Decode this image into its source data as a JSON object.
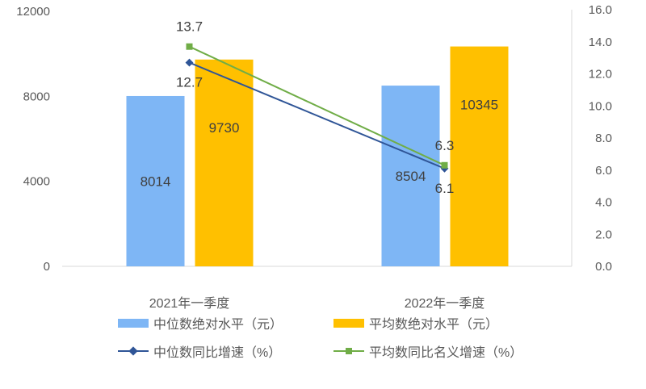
{
  "chart_data": {
    "type": "bar+line",
    "categories": [
      "2021年一季度",
      "2022年一季度"
    ],
    "bar_series": [
      {
        "name": "中位数绝对水平（元）",
        "values": [
          8014,
          8504
        ],
        "color": "#7EB6F5",
        "axis": "left"
      },
      {
        "name": "平均数绝对水平（元）",
        "values": [
          9730,
          10345
        ],
        "color": "#FFC000",
        "axis": "left"
      }
    ],
    "line_series": [
      {
        "name": "中位数同比增速（%）",
        "values": [
          12.7,
          6.1
        ],
        "color": "#2F5597",
        "marker": "diamond",
        "axis": "right"
      },
      {
        "name": "平均数同比名义增速（%）",
        "values": [
          13.7,
          6.3
        ],
        "color": "#70AD47",
        "marker": "square",
        "axis": "right"
      }
    ],
    "left_axis": {
      "range": [
        0,
        12000
      ],
      "ticks": [
        "0",
        "4000",
        "8000",
        "12000"
      ]
    },
    "right_axis": {
      "range": [
        0,
        16
      ],
      "ticks": [
        "0.0",
        "2.0",
        "4.0",
        "6.0",
        "8.0",
        "10.0",
        "12.0",
        "14.0",
        "16.0"
      ]
    },
    "grid": false,
    "legend_placement": "bottom"
  }
}
